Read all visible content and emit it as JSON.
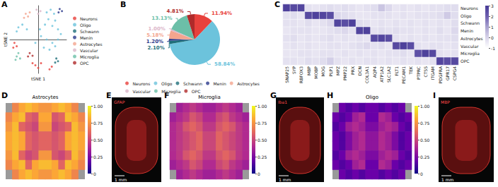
{
  "chart_data": [
    {
      "panel": "A",
      "type": "scatter",
      "xlabel": "tSNE 1",
      "ylabel": "tSNE 2",
      "xlim": [
        -50,
        50
      ],
      "ylim": [
        -50,
        50
      ],
      "tick_labels": false,
      "grid": false,
      "legend": "right",
      "series": [
        {
          "name": "Neurons",
          "color": "#e8413c",
          "values": [
            [
              -42,
              -5
            ],
            [
              -38,
              -10
            ],
            [
              -44,
              -12
            ],
            [
              -5,
              -38
            ],
            [
              0,
              -42
            ],
            [
              5,
              -35
            ],
            [
              -10,
              -35
            ],
            [
              20,
              -44
            ],
            [
              24,
              -40
            ]
          ]
        },
        {
          "name": "Oligo",
          "color": "#6cc3dc",
          "values": [
            [
              15,
              40
            ],
            [
              22,
              44
            ],
            [
              28,
              38
            ],
            [
              18,
              30
            ],
            [
              30,
              28
            ],
            [
              25,
              20
            ],
            [
              12,
              22
            ],
            [
              35,
              15
            ],
            [
              5,
              5
            ],
            [
              15,
              0
            ],
            [
              25,
              -5
            ],
            [
              35,
              0
            ],
            [
              10,
              -12
            ],
            [
              20,
              -15
            ],
            [
              30,
              -10
            ],
            [
              -5,
              -5
            ],
            [
              40,
              8
            ],
            [
              -35,
              18
            ],
            [
              -28,
              22
            ],
            [
              -20,
              15
            ],
            [
              -38,
              12
            ],
            [
              3,
              15
            ]
          ]
        },
        {
          "name": "Schwann",
          "color": "#1f6f7a",
          "values": [
            [
              32,
              -28
            ],
            [
              35,
              -32
            ],
            [
              30,
              -34
            ]
          ]
        },
        {
          "name": "Menin",
          "color": "#2b3a8c",
          "values": [
            [
              38,
              45
            ],
            [
              42,
              42
            ],
            [
              36,
              40
            ]
          ]
        },
        {
          "name": "Astrocytes",
          "color": "#f4a58e",
          "values": [
            [
              -22,
              38
            ],
            [
              -18,
              34
            ],
            [
              -25,
              32
            ],
            [
              -15,
              40
            ]
          ]
        },
        {
          "name": "Vascular",
          "color": "#dcb6c9",
          "values": [
            [
              0,
              38
            ],
            [
              4,
              42
            ],
            [
              -3,
              44
            ]
          ]
        },
        {
          "name": "Microglia",
          "color": "#6cbfa8",
          "values": [
            [
              -38,
              -25
            ],
            [
              -32,
              -28
            ],
            [
              -40,
              -30
            ],
            [
              -35,
              -20
            ]
          ]
        },
        {
          "name": "OPC",
          "color": "#b02a2a",
          "values": [
            [
              -15,
              -20
            ],
            [
              -10,
              -24
            ],
            [
              -18,
              -25
            ]
          ]
        }
      ]
    },
    {
      "panel": "B",
      "type": "pie",
      "legend": "bottom",
      "data_labels": true,
      "categories": [
        "Neurons",
        "Oligo",
        "Schwann",
        "Menin",
        "Astrocytes",
        "Vascular",
        "Microglia",
        "OPC"
      ],
      "values": [
        11.94,
        58.84,
        2.1,
        1.2,
        5.18,
        1.0,
        13.13,
        4.81
      ],
      "value_labels": [
        "11.94%",
        "58.84%",
        "2.10%",
        "1.20%",
        "5.18%",
        "1.00%",
        "13.13%",
        "4.81%"
      ],
      "colors": [
        "#e8413c",
        "#6cc3dc",
        "#1f6f7a",
        "#2b3a8c",
        "#f4a58e",
        "#dcb6c9",
        "#6cbfa8",
        "#b02a2a"
      ]
    },
    {
      "panel": "C",
      "type": "heatmap",
      "x": [
        "SNAP25",
        "SYP",
        "RBFOX3",
        "MBP",
        "MOBP",
        "MOG",
        "PLP1",
        "MPZ",
        "PMP22",
        "PRX",
        "DCN",
        "COL3A1",
        "AQP4",
        "ATP1A2",
        "SLC1A2",
        "FLT1",
        "PECAM1",
        "TEK",
        "PTPRC",
        "CTSS",
        "ITGAM",
        "PDGFRA",
        "GPR17",
        "CSPG4"
      ],
      "y": [
        "Neurons",
        "Oligo",
        "Schwann",
        "Menin",
        "Astrocytes",
        "Vascular",
        "Microglia",
        "OPC"
      ],
      "cells": [
        [
          2.8,
          2.6,
          2.7,
          -0.3,
          -0.4,
          -0.3,
          -0.2,
          -0.3,
          -0.2,
          -0.3,
          -0.4,
          -0.3,
          -0.2,
          0.3,
          -0.1,
          -0.4,
          -0.3,
          -0.4,
          -0.3,
          -0.4,
          -0.3,
          -0.3,
          -0.2,
          -0.2
        ],
        [
          -0.3,
          -0.2,
          -0.4,
          2.6,
          2.8,
          2.7,
          2.5,
          -0.1,
          -0.2,
          -0.3,
          -0.4,
          -0.4,
          -0.3,
          -0.3,
          -0.3,
          -0.4,
          -0.3,
          -0.4,
          -0.3,
          -0.3,
          -0.3,
          -0.2,
          0.2,
          -0.2
        ],
        [
          -0.3,
          -0.3,
          -0.4,
          -0.2,
          -0.4,
          -0.3,
          -0.1,
          2.7,
          2.5,
          2.8,
          -0.2,
          -0.3,
          -0.4,
          -0.3,
          -0.4,
          -0.3,
          -0.4,
          -0.3,
          -0.4,
          -0.3,
          -0.4,
          -0.3,
          -0.4,
          -0.2
        ],
        [
          -0.4,
          -0.3,
          -0.3,
          -0.3,
          -0.4,
          -0.4,
          -0.3,
          -0.2,
          -0.1,
          -0.3,
          2.7,
          2.8,
          -0.3,
          -0.2,
          -0.3,
          -0.2,
          -0.3,
          -0.3,
          -0.4,
          -0.3,
          -0.4,
          -0.2,
          -0.4,
          -0.1
        ],
        [
          -0.3,
          -0.2,
          -0.4,
          -0.3,
          -0.4,
          -0.3,
          -0.2,
          -0.4,
          -0.3,
          -0.4,
          -0.3,
          -0.4,
          2.6,
          2.7,
          2.5,
          -0.3,
          -0.4,
          -0.3,
          -0.4,
          -0.3,
          -0.4,
          -0.3,
          -0.3,
          -0.2
        ],
        [
          -0.4,
          -0.3,
          -0.4,
          -0.3,
          -0.4,
          -0.4,
          -0.3,
          -0.3,
          -0.4,
          -0.3,
          -0.2,
          -0.1,
          -0.3,
          -0.2,
          -0.4,
          2.6,
          2.8,
          2.5,
          -0.3,
          -0.4,
          -0.3,
          -0.3,
          -0.4,
          -0.3
        ],
        [
          -0.4,
          -0.4,
          -0.3,
          -0.3,
          -0.4,
          -0.3,
          -0.3,
          -0.4,
          -0.3,
          -0.4,
          -0.3,
          -0.4,
          -0.3,
          -0.4,
          -0.3,
          -0.3,
          -0.2,
          -0.4,
          2.4,
          2.8,
          2.6,
          -0.3,
          -0.4,
          -0.3
        ],
        [
          -0.3,
          -0.3,
          -0.4,
          -0.2,
          -0.3,
          -0.2,
          0.1,
          -0.3,
          -0.4,
          -0.3,
          -0.4,
          -0.3,
          -0.3,
          -0.4,
          -0.3,
          -0.4,
          -0.3,
          -0.4,
          -0.3,
          -0.4,
          -0.3,
          2.7,
          2.5,
          2.6
        ]
      ],
      "colorbar": {
        "range": [
          -1,
          3
        ],
        "ticks": [
          -1,
          0,
          1,
          2,
          3
        ]
      }
    },
    {
      "panel": "D",
      "type": "heatmap",
      "title": "Astrocytes",
      "cells": [
        [
          null,
          0.7,
          0.8,
          0.85,
          0.8,
          0.75,
          0.75,
          0.8,
          0.85,
          0.8,
          0.7,
          null
        ],
        [
          0.7,
          0.8,
          0.85,
          0.6,
          0.55,
          0.8,
          0.8,
          0.55,
          0.6,
          0.85,
          0.8,
          0.7
        ],
        [
          0.75,
          0.85,
          0.6,
          0.55,
          0.5,
          0.75,
          0.75,
          0.5,
          0.55,
          0.6,
          0.85,
          0.75
        ],
        [
          0.8,
          0.85,
          0.8,
          0.6,
          0.55,
          0.6,
          0.6,
          0.55,
          0.6,
          0.8,
          0.85,
          0.8
        ],
        [
          0.8,
          0.85,
          0.8,
          0.6,
          0.55,
          0.6,
          0.6,
          0.55,
          0.6,
          0.8,
          0.85,
          0.8
        ],
        [
          0.75,
          0.85,
          0.6,
          0.5,
          0.55,
          0.75,
          0.75,
          0.55,
          0.5,
          0.6,
          0.85,
          0.75
        ],
        [
          0.7,
          0.8,
          0.85,
          0.6,
          0.8,
          0.85,
          0.85,
          0.8,
          0.6,
          0.85,
          0.8,
          0.7
        ],
        [
          null,
          0.7,
          0.8,
          0.85,
          0.8,
          0.75,
          0.75,
          0.8,
          0.85,
          0.8,
          0.7,
          null
        ]
      ],
      "colorbar": {
        "range": [
          0,
          1
        ],
        "ticks": [
          0,
          0.25,
          {
            "value": 0.5,
            "label": "0.50"
          },
          0.75,
          {
            "value": 1,
            "label": "1.00"
          }
        ]
      }
    },
    {
      "panel": "F",
      "type": "heatmap",
      "title": "Microglia",
      "cells": [
        [
          null,
          0.35,
          0.4,
          0.45,
          0.4,
          0.35,
          0.35,
          0.4,
          0.45,
          0.4,
          0.35,
          null
        ],
        [
          0.35,
          0.4,
          0.45,
          0.55,
          0.5,
          0.4,
          0.4,
          0.5,
          0.55,
          0.45,
          0.4,
          0.35
        ],
        [
          0.4,
          0.45,
          0.55,
          0.6,
          0.55,
          0.45,
          0.45,
          0.55,
          0.6,
          0.55,
          0.45,
          0.4
        ],
        [
          0.4,
          0.45,
          0.5,
          0.55,
          0.6,
          0.5,
          0.5,
          0.6,
          0.55,
          0.5,
          0.45,
          0.4
        ],
        [
          0.4,
          0.45,
          0.5,
          0.55,
          0.6,
          0.5,
          0.5,
          0.6,
          0.55,
          0.5,
          0.45,
          0.4
        ],
        [
          0.4,
          0.45,
          0.55,
          0.6,
          0.55,
          0.45,
          0.45,
          0.55,
          0.6,
          0.55,
          0.45,
          0.4
        ],
        [
          0.35,
          0.4,
          0.45,
          0.55,
          0.5,
          0.4,
          0.4,
          0.5,
          0.55,
          0.45,
          0.4,
          0.35
        ],
        [
          null,
          0.35,
          0.4,
          0.45,
          0.4,
          0.35,
          0.35,
          0.4,
          0.45,
          0.4,
          0.35,
          null
        ]
      ],
      "colorbar": {
        "range": [
          0,
          1
        ],
        "ticks": [
          0,
          0.25,
          {
            "value": 0.5,
            "label": "0.50"
          },
          0.75,
          {
            "value": 1,
            "label": "1.00"
          }
        ]
      }
    },
    {
      "panel": "H",
      "type": "heatmap",
      "title": "Oligo",
      "cells": [
        [
          null,
          0.2,
          0.15,
          0.2,
          0.15,
          0.2,
          0.2,
          0.15,
          0.2,
          0.15,
          0.2,
          null
        ],
        [
          0.2,
          0.15,
          0.2,
          0.35,
          0.4,
          0.2,
          0.2,
          0.4,
          0.35,
          0.2,
          0.15,
          0.2
        ],
        [
          0.15,
          0.2,
          0.35,
          0.4,
          0.35,
          0.25,
          0.25,
          0.35,
          0.4,
          0.35,
          0.2,
          0.15
        ],
        [
          0.2,
          0.15,
          0.25,
          0.35,
          0.4,
          0.3,
          0.3,
          0.4,
          0.35,
          0.25,
          0.15,
          0.2
        ],
        [
          0.2,
          0.15,
          0.25,
          0.35,
          0.4,
          0.3,
          0.3,
          0.4,
          0.35,
          0.25,
          0.15,
          0.2
        ],
        [
          0.15,
          0.2,
          0.35,
          0.4,
          0.35,
          0.25,
          0.25,
          0.35,
          0.4,
          0.35,
          0.2,
          0.15
        ],
        [
          0.2,
          0.15,
          0.2,
          0.35,
          0.4,
          0.2,
          0.2,
          0.4,
          0.35,
          0.2,
          0.15,
          0.2
        ],
        [
          null,
          0.2,
          0.15,
          0.2,
          0.15,
          0.2,
          0.2,
          0.15,
          0.2,
          0.15,
          0.2,
          null
        ]
      ],
      "colorbar": {
        "range": [
          0,
          1
        ],
        "ticks": [
          0,
          0.25,
          {
            "value": 0.5,
            "label": "0.50"
          },
          0.75,
          {
            "value": 1,
            "label": "1.00"
          }
        ]
      }
    }
  ],
  "images": [
    {
      "panel": "E",
      "label": "GFAP",
      "scale_bar": "1 mm"
    },
    {
      "panel": "G",
      "label": "Iba1",
      "scale_bar": "1 mm"
    },
    {
      "panel": "I",
      "label": "MBP",
      "scale_bar": "1 mm"
    }
  ]
}
